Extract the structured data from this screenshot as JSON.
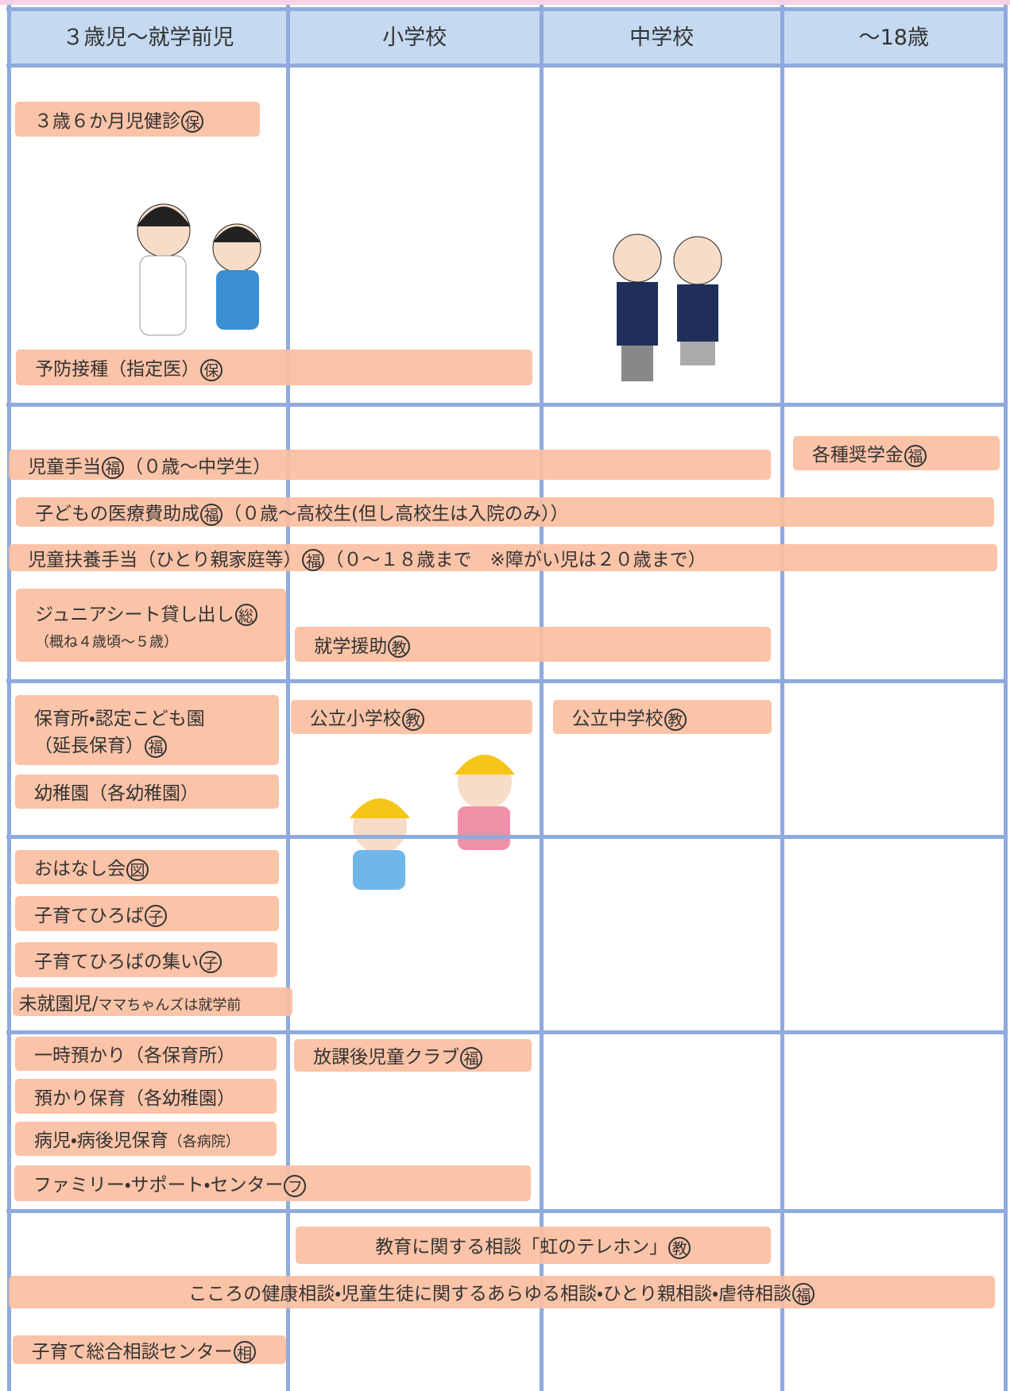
{
  "header": {
    "columns": [
      "３歳児～就学前児",
      "小学校",
      "中学校",
      "～18歳"
    ]
  },
  "items": [
    {
      "lines": [
        [
          {
            "text": "３歳６か月児健診"
          },
          {
            "mark": "保"
          }
        ]
      ]
    },
    {
      "lines": [
        [
          {
            "text": "予防接種（指定医）"
          },
          {
            "mark": "保"
          }
        ]
      ]
    },
    {
      "lines": [
        [
          {
            "text": "児童手当"
          },
          {
            "mark": "福"
          },
          {
            "text": "（０歳～中学生）"
          }
        ]
      ]
    },
    {
      "lines": [
        [
          {
            "text": "各種奨学金"
          },
          {
            "mark": "福"
          }
        ]
      ]
    },
    {
      "lines": [
        [
          {
            "text": "子どもの医療費助成"
          },
          {
            "mark": "福"
          },
          {
            "text": "（０歳～高校生(但し高校生は入院のみ））"
          }
        ]
      ]
    },
    {
      "lines": [
        [
          {
            "text": "児童扶養手当（ひとり親家庭等）"
          },
          {
            "mark": "福"
          },
          {
            "text": "（０～１８歳まで　※障がい児は２０歳まで）"
          }
        ]
      ]
    },
    {
      "lines": [
        [
          {
            "text": "ジュニアシート貸し出し"
          },
          {
            "mark": "総"
          }
        ],
        [
          {
            "small": "（概ね４歳頃～５歳）"
          }
        ]
      ]
    },
    {
      "lines": [
        [
          {
            "text": "就学援助"
          },
          {
            "mark": "教"
          }
        ]
      ]
    },
    {
      "lines": [
        [
          {
            "text": "保育所・認定こども園"
          }
        ],
        [
          {
            "text": "（延長保育）"
          },
          {
            "mark": "福"
          }
        ]
      ]
    },
    {
      "lines": [
        [
          {
            "text": "幼稚園（各幼稚園）"
          }
        ]
      ]
    },
    {
      "lines": [
        [
          {
            "text": "公立小学校"
          },
          {
            "mark": "教"
          }
        ]
      ]
    },
    {
      "lines": [
        [
          {
            "text": "公立中学校"
          },
          {
            "mark": "教"
          }
        ]
      ]
    },
    {
      "lines": [
        [
          {
            "text": "おはなし会"
          },
          {
            "mark": "図"
          }
        ]
      ]
    },
    {
      "lines": [
        [
          {
            "text": "子育てひろば"
          },
          {
            "mark": "子"
          }
        ]
      ]
    },
    {
      "lines": [
        [
          {
            "text": "子育てひろばの集い"
          },
          {
            "mark": "子"
          }
        ]
      ]
    },
    {
      "lines": [
        [
          {
            "text": "未就園児/"
          },
          {
            "small": "ママちゃんズは就学前"
          }
        ]
      ]
    },
    {
      "lines": [
        [
          {
            "text": "一時預かり（各保育所）"
          }
        ]
      ]
    },
    {
      "lines": [
        [
          {
            "text": "放課後児童クラブ"
          },
          {
            "mark": "福"
          }
        ]
      ]
    },
    {
      "lines": [
        [
          {
            "text": "預かり保育（各幼稚園）"
          }
        ]
      ]
    },
    {
      "lines": [
        [
          {
            "text": "病児・病後児保育"
          },
          {
            "small": "（各病院）"
          }
        ]
      ]
    },
    {
      "lines": [
        [
          {
            "text": "ファミリー・サポート・センター"
          },
          {
            "mark": "フ"
          }
        ]
      ]
    },
    {
      "lines": [
        [
          {
            "text": "教育に関する相談「虹のテレホン」"
          },
          {
            "mark": "教"
          }
        ]
      ]
    },
    {
      "lines": [
        [
          {
            "text": "こころの健康相談・児童生徒に関するあらゆる相談・ひとり親相談・虐待相談"
          },
          {
            "mark": "福"
          }
        ]
      ]
    },
    {
      "lines": [
        [
          {
            "text": "子育て総合相談センター"
          },
          {
            "mark": "相"
          }
        ]
      ]
    }
  ]
}
